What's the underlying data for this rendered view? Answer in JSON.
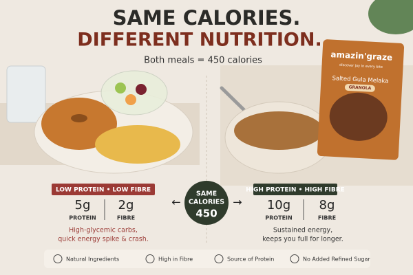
{
  "header": {
    "title_line1": "SAME CALORIES.",
    "title_line2": "DIFFERENT NUTRITION.",
    "subtitle": "Both meals = 450 calories"
  },
  "left": {
    "badge": "LOW PROTEIN • LOW FIBRE",
    "stats": [
      {
        "value": "5g",
        "label": "PROTEIN"
      },
      {
        "value": "2g",
        "label": "FIBRE"
      }
    ],
    "description": [
      "High-glycemic carbs,",
      "quick energy spike & crash."
    ]
  },
  "center": {
    "lines": [
      "SAME",
      "CALORIES"
    ],
    "calories": "450"
  },
  "right": {
    "badge": "HIGH PROTEIN • HIGH FIBRE",
    "stats": [
      {
        "value": "10g",
        "label": "PROTEIN"
      },
      {
        "value": "8g",
        "label": "FIBRE"
      }
    ],
    "description": [
      "Sustained energy,",
      "keeps you full for longer."
    ]
  },
  "package": {
    "brand": "amazin'graze",
    "tagline": "discover joy in every bite",
    "flavour": "Salted Gula Melaka",
    "product": "GRANOLA"
  },
  "footer": {
    "features": [
      "Natural Ingredients",
      "High in Fibre",
      "Source of Protein",
      "No Added Refined Sugar"
    ]
  }
}
